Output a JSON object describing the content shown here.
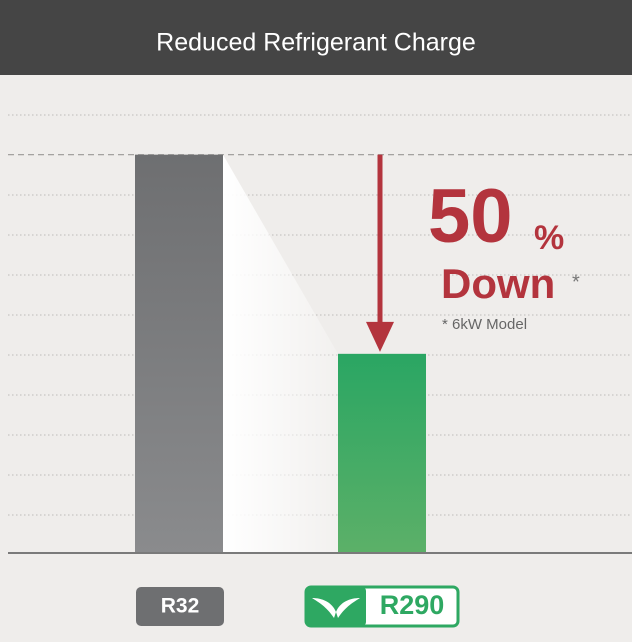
{
  "chart_data": {
    "type": "bar",
    "title": "Reduced Refrigerant Charge",
    "categories": [
      "R32",
      "R290"
    ],
    "values": [
      100,
      50
    ],
    "colors": [
      "#6e6f71",
      "#2ea862"
    ],
    "ylim": [
      0,
      120
    ],
    "annotation": {
      "percent": 50,
      "unit": "%",
      "text": "Down",
      "asterisk": "*",
      "footnote": "* 6kW Model"
    }
  }
}
